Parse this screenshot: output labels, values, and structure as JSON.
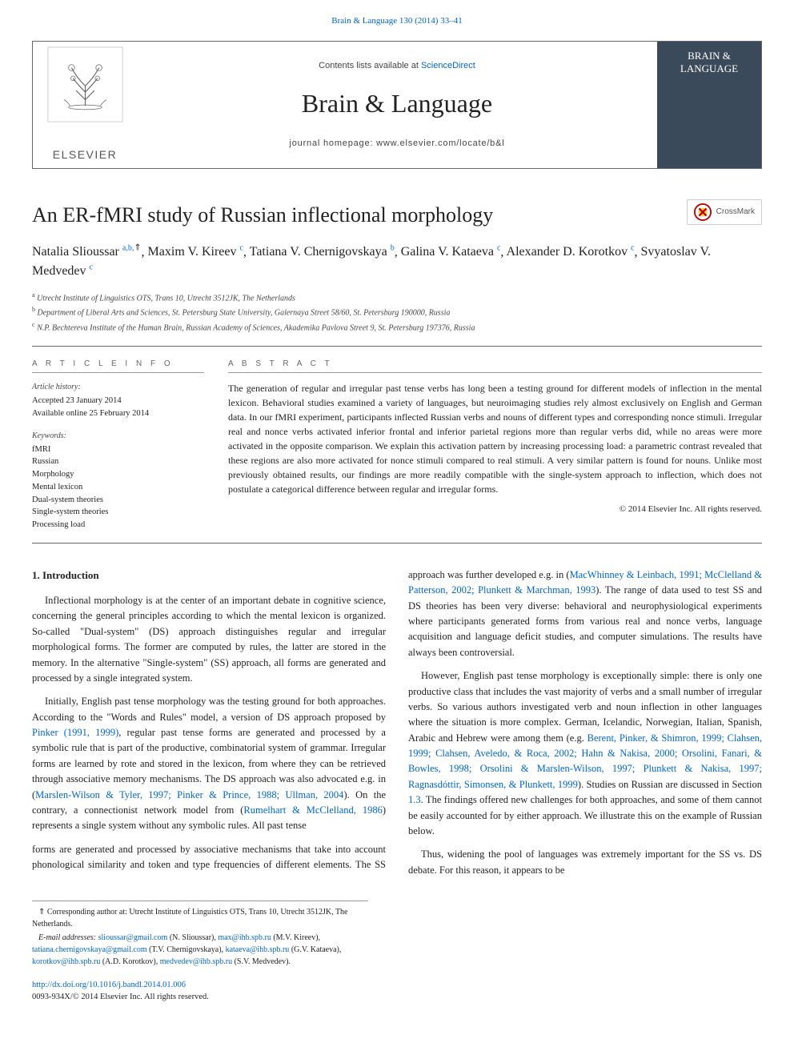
{
  "journal_link": "Brain & Language 130 (2014) 33–41",
  "masthead": {
    "contents_prefix": "Contents lists available at ",
    "contents_source": "ScienceDirect",
    "journal_title": "Brain & Language",
    "homepage_prefix": "journal homepage: ",
    "homepage_url": "www.elsevier.com/locate/b&l",
    "elsevier_name": "ELSEVIER",
    "cover_line1": "BRAIN &",
    "cover_line2": "LANGUAGE"
  },
  "crossmark_label": "CrossMark",
  "article": {
    "title": "An ER-fMRI study of Russian inflectional morphology",
    "authors": [
      {
        "name": "Natalia Slioussar",
        "affs": "a,b,",
        "star": true
      },
      {
        "name": "Maxim V. Kireev",
        "affs": "c"
      },
      {
        "name": "Tatiana V. Chernigovskaya",
        "affs": "b"
      },
      {
        "name": "Galina V. Kataeva",
        "affs": "c"
      },
      {
        "name": "Alexander D. Korotkov",
        "affs": "c"
      },
      {
        "name": "Svyatoslav V. Medvedev",
        "affs": "c"
      }
    ],
    "affiliations": [
      {
        "sup": "a",
        "text": "Utrecht Institute of Linguistics OTS, Trans 10, Utrecht 3512JK, The Netherlands"
      },
      {
        "sup": "b",
        "text": "Department of Liberal Arts and Sciences, St. Petersburg State University, Galernaya Street 58/60, St. Petersburg 190000, Russia"
      },
      {
        "sup": "c",
        "text": "N.P. Bechtereva Institute of the Human Brain, Russian Academy of Sciences, Akademika Pavlova Street 9, St. Petersburg 197376, Russia"
      }
    ]
  },
  "info": {
    "article_info_label": "A R T I C L E   I N F O",
    "abstract_label": "A B S T R A C T",
    "history_label": "Article history:",
    "accepted": "Accepted 23 January 2014",
    "online": "Available online 25 February 2014",
    "keywords_label": "Keywords:",
    "keywords": [
      "fMRI",
      "Russian",
      "Morphology",
      "Mental lexicon",
      "Dual-system theories",
      "Single-system theories",
      "Processing load"
    ]
  },
  "abstract_text": "The generation of regular and irregular past tense verbs has long been a testing ground for different models of inflection in the mental lexicon. Behavioral studies examined a variety of languages, but neuroimaging studies rely almost exclusively on English and German data. In our fMRI experiment, participants inflected Russian verbs and nouns of different types and corresponding nonce stimuli. Irregular real and nonce verbs activated inferior frontal and inferior parietal regions more than regular verbs did, while no areas were more activated in the opposite comparison. We explain this activation pattern by increasing processing load: a parametric contrast revealed that these regions are also more activated for nonce stimuli compared to real stimuli. A very similar pattern is found for nouns. Unlike most previously obtained results, our findings are more readily compatible with the single-system approach to inflection, which does not postulate a categorical difference between regular and irregular forms.",
  "copyright": "© 2014 Elsevier Inc. All rights reserved.",
  "body": {
    "heading": "1. Introduction",
    "paragraphs": [
      "Inflectional morphology is at the center of an important debate in cognitive science, concerning the general principles according to which the mental lexicon is organized. So-called \"Dual-system\" (DS) approach distinguishes regular and irregular morphological forms. The former are computed by rules, the latter are stored in the memory. In the alternative \"Single-system\" (SS) approach, all forms are generated and processed by a single integrated system.",
      "Initially, English past tense morphology was the testing ground for both approaches. According to the \"Words and Rules\" model, a version of DS approach proposed by <span class=\"ref-link\">Pinker (1991, 1999)</span>, regular past tense forms are generated and processed by a symbolic rule that is part of the productive, combinatorial system of grammar. Irregular forms are learned by rote and stored in the lexicon, from where they can be retrieved through associative memory mechanisms. The DS approach was also advocated e.g. in (<span class=\"ref-link\">Marslen-Wilson & Tyler, 1997; Pinker & Prince, 1988; Ullman, 2004</span>). On the contrary, a connectionist network model from (<span class=\"ref-link\">Rumelhart & McClelland, 1986</span>) represents a single system without any symbolic rules. All past tense",
      "forms are generated and processed by associative mechanisms that take into account phonological similarity and token and type frequencies of different elements. The SS approach was further developed e.g. in (<span class=\"ref-link\">MacWhinney & Leinbach, 1991; McClelland & Patterson, 2002; Plunkett & Marchman, 1993</span>). The range of data used to test SS and DS theories has been very diverse: behavioral and neurophysiological experiments where participants generated forms from various real and nonce verbs, language acquisition and language deficit studies, and computer simulations. The results have always been controversial.",
      "However, English past tense morphology is exceptionally simple: there is only one productive class that includes the vast majority of verbs and a small number of irregular verbs. So various authors investigated verb and noun inflection in other languages where the situation is more complex. German, Icelandic, Norwegian, Italian, Spanish, Arabic and Hebrew were among them (e.g. <span class=\"ref-link\">Berent, Pinker, & Shimron, 1999; Clahsen, 1999; Clahsen, Aveledo, & Roca, 2002; Hahn & Nakisa, 2000; Orsolini, Fanari, & Bowles, 1998; Orsolini & Marslen-Wilson, 1997; Plunkett & Nakisa, 1997; Ragnasdóttir, Simonsen, & Plunkett, 1999</span>). Studies on Russian are discussed in Section <span class=\"ref-link\">1.3</span>. The findings offered new challenges for both approaches, and some of them cannot be easily accounted for by either approach. We illustrate this on the example of Russian below.",
      "Thus, widening the pool of languages was extremely important for the SS vs. DS debate. For this reason, it appears to be"
    ]
  },
  "footer": {
    "corresponding_star": "⇑",
    "corresponding": "Corresponding author at: Utrecht Institute of Linguistics OTS, Trans 10, Utrecht 3512JK, The Netherlands.",
    "email_label": "E-mail addresses:",
    "emails": [
      {
        "addr": "slioussar@gmail.com",
        "who": "(N. Slioussar)"
      },
      {
        "addr": "max@ihb.spb.ru",
        "who": "(M.V. Kireev)"
      },
      {
        "addr": "tatiana.chernigovskaya@gmail.com",
        "who": "(T.V. Chernigovskaya)"
      },
      {
        "addr": "kataeva@ihb.spb.ru",
        "who": "(G.V. Kataeva)"
      },
      {
        "addr": "korotkov@ihb.spb.ru",
        "who": "(A.D. Korotkov)"
      },
      {
        "addr": "medvedev@ihb.spb.ru",
        "who": "(S.V. Medvedev)"
      }
    ]
  },
  "doi": {
    "url": "http://dx.doi.org/10.1016/j.bandl.2014.01.006",
    "issn_line": "0093-934X/© 2014 Elsevier Inc. All rights reserved."
  },
  "colors": {
    "link": "#0066cc",
    "cover_bg": "#3b4a5a",
    "text": "#222222",
    "rule": "#666666"
  }
}
